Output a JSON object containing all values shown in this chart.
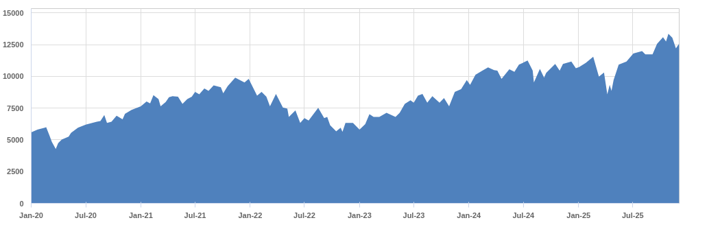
{
  "chart_data": {
    "type": "area",
    "color": "#4f81bd",
    "x": [
      "2020-01-01",
      "2020-01-22",
      "2020-02-15",
      "2020-02-20",
      "2020-03-01",
      "2020-03-10",
      "2020-03-23",
      "2020-03-31",
      "2020-04-12",
      "2020-05-05",
      "2020-05-13",
      "2020-06-05",
      "2020-07-01",
      "2020-08-07",
      "2020-08-19",
      "2020-09-01",
      "2020-09-10",
      "2020-09-25",
      "2020-10-12",
      "2020-11-01",
      "2020-11-09",
      "2020-12-01",
      "2021-01-01",
      "2021-01-20",
      "2021-02-01",
      "2021-02-12",
      "2021-03-01",
      "2021-03-08",
      "2021-03-25",
      "2021-04-05",
      "2021-04-17",
      "2021-05-05",
      "2021-05-20",
      "2021-06-05",
      "2021-06-20",
      "2021-07-01",
      "2021-07-15",
      "2021-08-01",
      "2021-08-15",
      "2021-09-01",
      "2021-09-25",
      "2021-10-03",
      "2021-10-18",
      "2021-11-12",
      "2021-12-13",
      "2021-12-27",
      "2022-01-24",
      "2022-02-08",
      "2022-02-24",
      "2022-03-08",
      "2022-03-28",
      "2022-04-20",
      "2022-05-05",
      "2022-05-10",
      "2022-06-01",
      "2022-06-17",
      "2022-07-01",
      "2022-07-15",
      "2022-08-16",
      "2022-09-05",
      "2022-09-15",
      "2022-09-25",
      "2022-10-15",
      "2022-10-30",
      "2022-11-05",
      "2022-11-15",
      "2022-12-10",
      "2023-01-01",
      "2023-01-20",
      "2023-02-03",
      "2023-02-17",
      "2023-03-08",
      "2023-04-01",
      "2023-05-01",
      "2023-05-15",
      "2023-06-01",
      "2023-06-20",
      "2023-07-01",
      "2023-07-15",
      "2023-07-30",
      "2023-08-15",
      "2023-09-01",
      "2023-09-25",
      "2023-10-10",
      "2023-10-27",
      "2023-11-15",
      "2023-12-06",
      "2023-12-25",
      "2024-01-05",
      "2024-01-23",
      "2024-02-15",
      "2024-03-05",
      "2024-03-25",
      "2024-04-05",
      "2024-04-19",
      "2024-05-15",
      "2024-06-01",
      "2024-06-16",
      "2024-07-15",
      "2024-08-01",
      "2024-08-05",
      "2024-08-25",
      "2024-09-08",
      "2024-09-15",
      "2024-10-15",
      "2024-10-30",
      "2024-11-10",
      "2024-12-08",
      "2024-12-23",
      "2025-01-03",
      "2025-01-25",
      "2025-02-19",
      "2025-03-10",
      "2025-03-27",
      "2025-04-07",
      "2025-04-15",
      "2025-04-21",
      "2025-04-28",
      "2025-05-15",
      "2025-06-10",
      "2025-07-03",
      "2025-08-01",
      "2025-08-12",
      "2025-09-05",
      "2025-09-20",
      "2025-10-10",
      "2025-10-20",
      "2025-10-28",
      "2025-11-10",
      "2025-11-22",
      "2025-12-03"
    ],
    "values": [
      5600,
      5810,
      5960,
      6000,
      5400,
      4840,
      4280,
      4740,
      5030,
      5250,
      5550,
      5960,
      6200,
      6430,
      6490,
      6960,
      6340,
      6430,
      6900,
      6620,
      7050,
      7370,
      7650,
      8030,
      7880,
      8530,
      8210,
      7650,
      7990,
      8360,
      8440,
      8400,
      7840,
      8210,
      8400,
      8780,
      8590,
      9060,
      8870,
      9300,
      9150,
      8680,
      9240,
      9900,
      9530,
      9810,
      8490,
      8780,
      8400,
      7650,
      8620,
      7560,
      7460,
      6810,
      7330,
      6340,
      6710,
      6530,
      7520,
      6710,
      6810,
      6150,
      5680,
      5960,
      5630,
      6340,
      6340,
      5810,
      6240,
      7030,
      6810,
      6810,
      7130,
      6810,
      7130,
      7840,
      8120,
      7930,
      8490,
      8620,
      7930,
      8440,
      7930,
      8300,
      7650,
      8780,
      9000,
      9710,
      9340,
      10130,
      10460,
      10710,
      10500,
      10460,
      9810,
      10560,
      10370,
      10930,
      11250,
      10460,
      9530,
      10590,
      9900,
      10280,
      10990,
      10460,
      10990,
      11180,
      10650,
      10740,
      11060,
      11550,
      9990,
      10310,
      8590,
      9340,
      8870,
      9710,
      10930,
      11180,
      11810,
      12000,
      11740,
      11740,
      12560,
      13090,
      12750,
      13370,
      13050,
      12210,
      12590
    ],
    "xlim": [
      "2020-01-01",
      "2025-12-03"
    ],
    "xticks": [
      {
        "value": "2020-01-01",
        "label": "Jan-20"
      },
      {
        "value": "2020-07-01",
        "label": "Jul-20"
      },
      {
        "value": "2021-01-01",
        "label": "Jan-21"
      },
      {
        "value": "2021-07-01",
        "label": "Jul-21"
      },
      {
        "value": "2022-01-01",
        "label": "Jan-22"
      },
      {
        "value": "2022-07-01",
        "label": "Jul-22"
      },
      {
        "value": "2023-01-01",
        "label": "Jan-23"
      },
      {
        "value": "2023-07-01",
        "label": "Jul-23"
      },
      {
        "value": "2024-01-01",
        "label": "Jan-24"
      },
      {
        "value": "2024-07-01",
        "label": "Jul-24"
      },
      {
        "value": "2025-01-01",
        "label": "Jan-25"
      },
      {
        "value": "2025-07-01",
        "label": "Jul-25"
      }
    ],
    "ylim": [
      0,
      15350
    ],
    "yticks": [
      0,
      2500,
      5000,
      7500,
      10000,
      12500,
      15000
    ],
    "grid": true
  }
}
